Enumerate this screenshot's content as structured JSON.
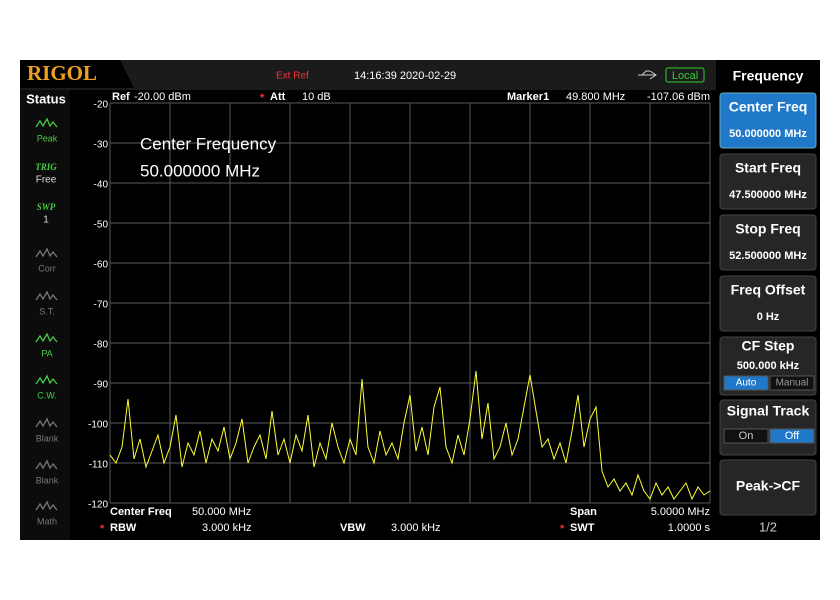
{
  "header": {
    "brand": "RIGOL",
    "ext_ref": "Ext Ref",
    "datetime": "14:16:39 2020-02-29",
    "local": "Local"
  },
  "status": {
    "title": "Status",
    "items": [
      {
        "line1": "Peak",
        "active": true
      },
      {
        "top": "TRIG",
        "line1": "Free",
        "active": true
      },
      {
        "top": "SWP",
        "line1": "1",
        "active": true
      },
      {
        "line1": "Corr",
        "active": false
      },
      {
        "line1": "S.T.",
        "active": false
      },
      {
        "line1": "PA",
        "active": true
      },
      {
        "line1": "C.W.",
        "active": true
      },
      {
        "line1": "Blank",
        "active": false
      },
      {
        "line1": "Blank",
        "active": false
      },
      {
        "line1": "Math",
        "active": false
      }
    ]
  },
  "top_line": {
    "ref_label": "Ref",
    "ref_value": "-20.00 dBm",
    "flag": "*",
    "att_label": "Att",
    "att_value": "10 dB",
    "marker_label": "Marker1",
    "marker_freq": "49.800 MHz",
    "marker_level": "-107.06 dBm"
  },
  "overlay": {
    "line1": "Center Frequency",
    "line2": "50.000000 MHz"
  },
  "trace": {
    "color": "#ffff33",
    "ylim": [
      -120,
      -20
    ],
    "yticks": [
      -20,
      -30,
      -40,
      -50,
      -60,
      -70,
      -80,
      -90,
      -100,
      -110,
      -120
    ],
    "values": [
      -108,
      -110,
      -106,
      -94,
      -109,
      -104,
      -111,
      -107,
      -103,
      -110,
      -106,
      -98,
      -111,
      -105,
      -108,
      -102,
      -110,
      -104,
      -107,
      -101,
      -109,
      -105,
      -99,
      -110,
      -106,
      -103,
      -109,
      -97,
      -108,
      -104,
      -110,
      -103,
      -107,
      -98,
      -111,
      -105,
      -109,
      -100,
      -106,
      -110,
      -104,
      -108,
      -89,
      -106,
      -110,
      -102,
      -108,
      -105,
      -109,
      -100,
      -93,
      -107,
      -101,
      -108,
      -96,
      -91,
      -106,
      -110,
      -103,
      -108,
      -99,
      -87,
      -104,
      -95,
      -109,
      -106,
      -100,
      -108,
      -104,
      -96,
      -88,
      -97,
      -106,
      -104,
      -109,
      -105,
      -110,
      -102,
      -93,
      -106,
      -99,
      -96,
      -112,
      -116,
      -114,
      -117,
      -115,
      -118,
      -113,
      -117,
      -119,
      -115,
      -118,
      -116,
      -119,
      -117,
      -115,
      -119,
      -116,
      -118,
      -117
    ]
  },
  "footer": {
    "flag": "*",
    "center_label": "Center Freq",
    "center_value": "50.000 MHz",
    "span_label": "Span",
    "span_value": "5.0000 MHz",
    "rbw_label": "RBW",
    "rbw_value": "3.000 kHz",
    "vbw_label": "VBW",
    "vbw_value": "3.000 kHz",
    "swt_label": "SWT",
    "swt_value": "1.0000 s"
  },
  "menu": {
    "title": "Frequency",
    "buttons": [
      {
        "label": "Center Freq",
        "value": "50.000000 MHz",
        "selected": true
      },
      {
        "label": "Start Freq",
        "value": "47.500000 MHz",
        "selected": false
      },
      {
        "label": "Stop Freq",
        "value": "52.500000 MHz",
        "selected": false
      },
      {
        "label": "Freq Offset",
        "value": "0 Hz",
        "selected": false
      }
    ],
    "cf_step": {
      "label": "CF Step",
      "value": "500.000 kHz",
      "options": [
        "Auto",
        "Manual"
      ],
      "active": 0
    },
    "signal_track": {
      "label": "Signal Track",
      "options": [
        "On",
        "Off"
      ],
      "active": 1
    },
    "peak_cf": "Peak->CF",
    "page": "1/2"
  }
}
